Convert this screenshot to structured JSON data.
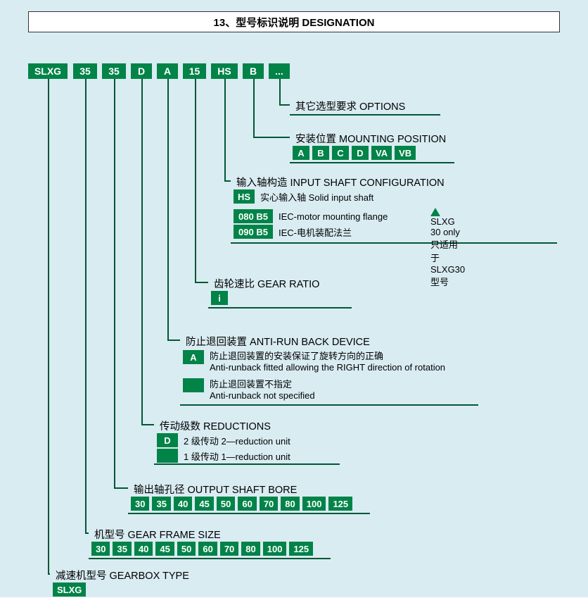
{
  "colors": {
    "green": "#028348",
    "line": "#015735",
    "bg": "#d9ecf2",
    "white": "#ffffff"
  },
  "title": "13、型号标识说明  DESIGNATION",
  "topCodes": [
    "SLXG",
    "35",
    "35",
    "D",
    "A",
    "15",
    "HS",
    "B",
    "..."
  ],
  "sections": {
    "options": {
      "title": "其它选型要求  OPTIONS"
    },
    "mounting": {
      "title": "安装位置  MOUNTING POSITION",
      "opts": [
        "A",
        "B",
        "C",
        "D",
        "VA",
        "VB"
      ]
    },
    "inputShaft": {
      "title": "输入轴构造  INPUT SHAFT CONFIGURATION",
      "rows": [
        {
          "code": "HS",
          "cn": "实心输入轴",
          "en": "Solid input shaft"
        },
        {
          "code": "080 B5",
          "en": "IEC-motor mounting flange"
        },
        {
          "code": "090 B5",
          "en": "IEC-电机装配法兰"
        }
      ],
      "note1": "SLXG 30 only",
      "note2": "只适用于 SLXG30型号"
    },
    "gearRatio": {
      "title": "齿轮速比  GEAR RATIO",
      "code": "i"
    },
    "antiRun": {
      "title": "防止退回装置  ANTI-RUN BACK DEVICE",
      "rows": [
        {
          "code": "A",
          "cn": "防止退回装置的安装保证了旋转方向的正确",
          "en": "Anti-runback fitted allowing the RIGHT direction of rotation"
        },
        {
          "code": "",
          "cn": "防止退回装置不指定",
          "en": "Anti-runback not specified"
        }
      ]
    },
    "reductions": {
      "title": "传动级数  REDUCTIONS",
      "rows": [
        {
          "code": "D",
          "cn": "2 级传动",
          "en": "2—reduction unit"
        },
        {
          "code": "",
          "cn": "1 级传动",
          "en": "1—reduction unit"
        }
      ]
    },
    "outputBore": {
      "title": "输出轴孔径  OUTPUT SHAFT BORE",
      "opts": [
        "30",
        "35",
        "40",
        "45",
        "50",
        "60",
        "70",
        "80",
        "100",
        "125"
      ]
    },
    "frameSize": {
      "title": "机型号  GEAR FRAME SIZE",
      "opts": [
        "30",
        "35",
        "40",
        "45",
        "50",
        "60",
        "70",
        "80",
        "100",
        "125"
      ]
    },
    "gearboxType": {
      "title": "减速机型号  GEARBOX TYPE",
      "code": "SLXG"
    }
  }
}
